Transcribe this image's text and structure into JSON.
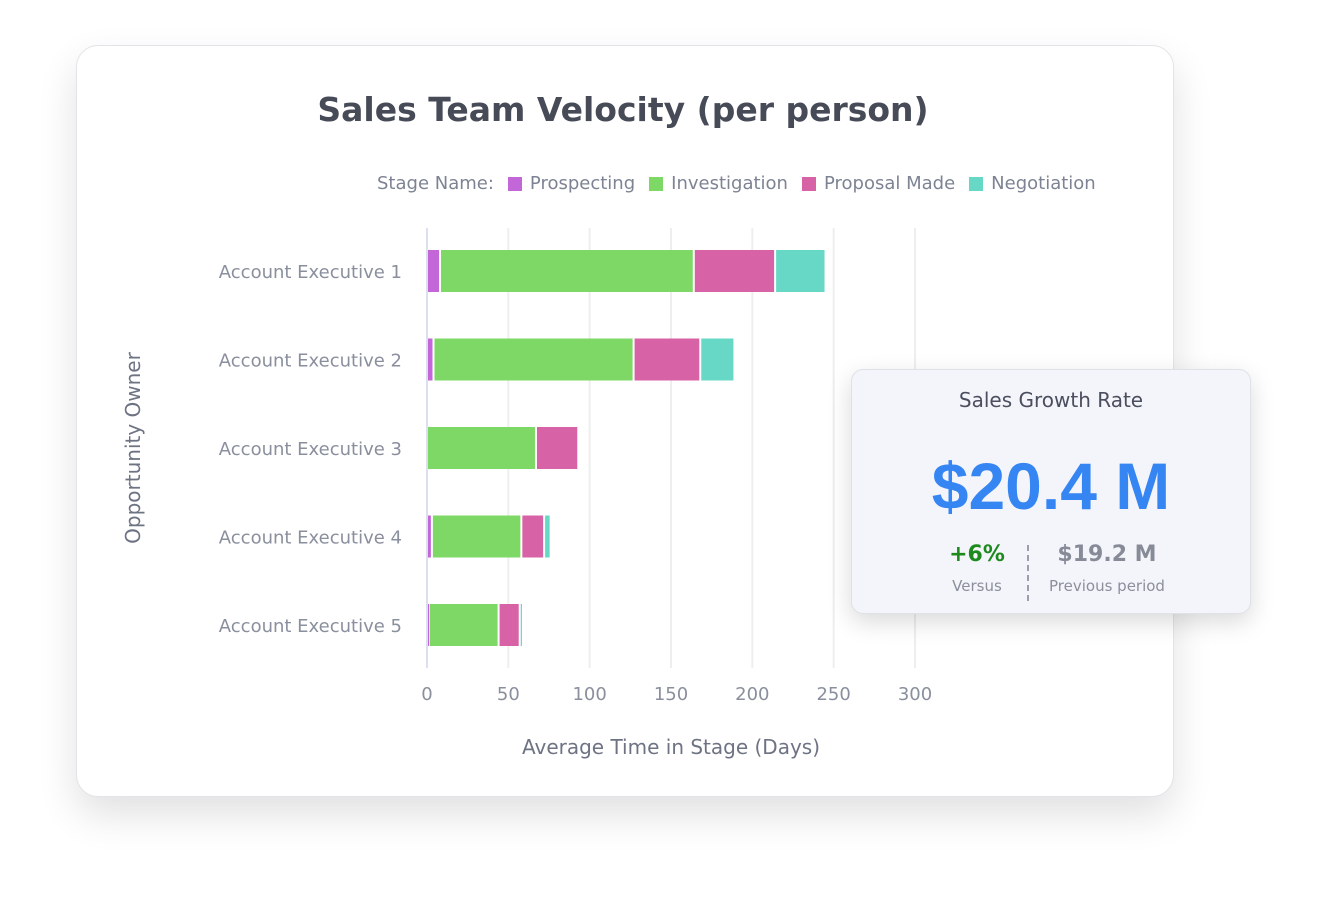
{
  "chart_data": {
    "type": "bar",
    "orientation": "horizontal",
    "stacked": true,
    "title": "Sales Team Velocity (per person)",
    "legend_title": "Stage Name:",
    "legend_position": "top",
    "xlabel": "Average Time in Stage (Days)",
    "ylabel": "Opportunity Owner",
    "xlim": [
      0,
      300
    ],
    "xticks": [
      0,
      50,
      100,
      150,
      200,
      250,
      300
    ],
    "grid": true,
    "categories": [
      "Account Executive 1",
      "Account Executive 2",
      "Account Executive 3",
      "Account Executive 4",
      "Account Executive 5"
    ],
    "series": [
      {
        "name": "Prospecting",
        "color": "#c366d8",
        "values": [
          8,
          4,
          0,
          3,
          1
        ]
      },
      {
        "name": "Investigation",
        "color": "#7ed866",
        "values": [
          156,
          123,
          67,
          55,
          43
        ]
      },
      {
        "name": "Proposal Made",
        "color": "#d862a6",
        "values": [
          50,
          41,
          26,
          14,
          13
        ]
      },
      {
        "name": "Negotiation",
        "color": "#66d8c5",
        "values": [
          31,
          21,
          0,
          4,
          2
        ]
      }
    ]
  },
  "kpi": {
    "title": "Sales Growth Rate",
    "value": "$20.4 M",
    "change": "+6%",
    "change_label": "Versus",
    "change_color": "#1e8a1e",
    "previous": "$19.2 M",
    "previous_label": "Previous period",
    "value_color": "#3585f2"
  }
}
